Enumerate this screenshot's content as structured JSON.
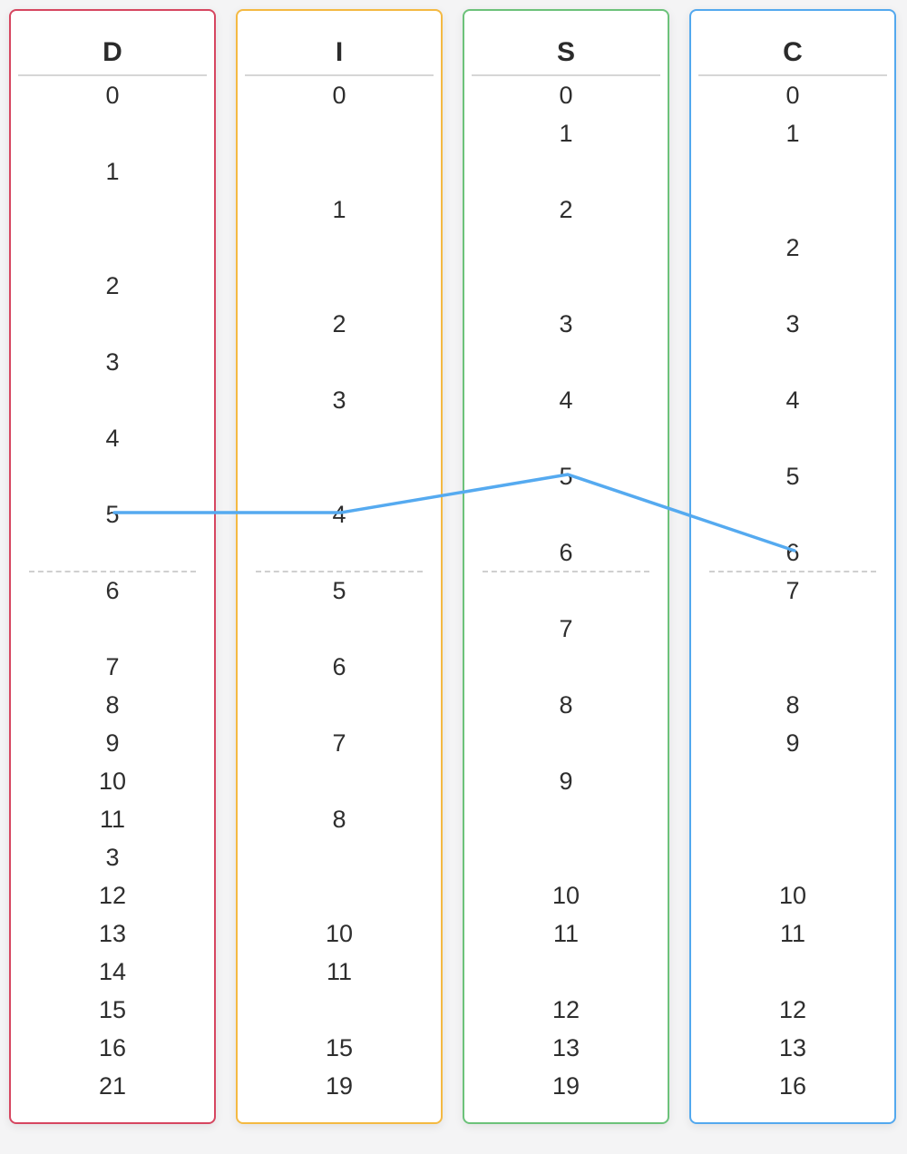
{
  "chart_data": {
    "type": "line",
    "columns": [
      {
        "key": "D",
        "title": "D",
        "color": "#d64660",
        "values": [
          0,
          1,
          2,
          3,
          4,
          5,
          6,
          7,
          8,
          9,
          10,
          11,
          3,
          12,
          13,
          14,
          15,
          16,
          21
        ],
        "rows": [
          0,
          2,
          5,
          7,
          9,
          11,
          13,
          15,
          16,
          17,
          18,
          19,
          20,
          21,
          22,
          23,
          24,
          25,
          26
        ]
      },
      {
        "key": "I",
        "title": "I",
        "color": "#f4b942",
        "values": [
          0,
          1,
          2,
          3,
          4,
          5,
          6,
          7,
          8,
          10,
          11,
          15,
          19
        ],
        "rows": [
          0,
          3,
          6,
          8,
          11,
          13,
          15,
          17,
          19,
          22,
          23,
          25,
          26
        ]
      },
      {
        "key": "S",
        "title": "S",
        "color": "#6cc27a",
        "values": [
          0,
          1,
          2,
          3,
          4,
          5,
          6,
          7,
          8,
          9,
          10,
          11,
          12,
          13,
          19
        ],
        "rows": [
          0,
          1,
          3,
          6,
          8,
          10,
          12,
          14,
          16,
          18,
          21,
          22,
          24,
          25,
          26
        ]
      },
      {
        "key": "C",
        "title": "C",
        "color": "#53a8ee",
        "values": [
          0,
          1,
          2,
          3,
          4,
          5,
          6,
          7,
          8,
          9,
          10,
          11,
          12,
          13,
          16
        ],
        "rows": [
          0,
          1,
          4,
          6,
          8,
          10,
          12,
          13,
          16,
          17,
          21,
          22,
          24,
          25,
          26
        ]
      }
    ],
    "line": {
      "color": "#55aaf0",
      "points": [
        {
          "column": "D",
          "value": 5
        },
        {
          "column": "I",
          "value": 4
        },
        {
          "column": "S",
          "value": 5
        },
        {
          "column": "C",
          "value": 6
        }
      ]
    }
  }
}
